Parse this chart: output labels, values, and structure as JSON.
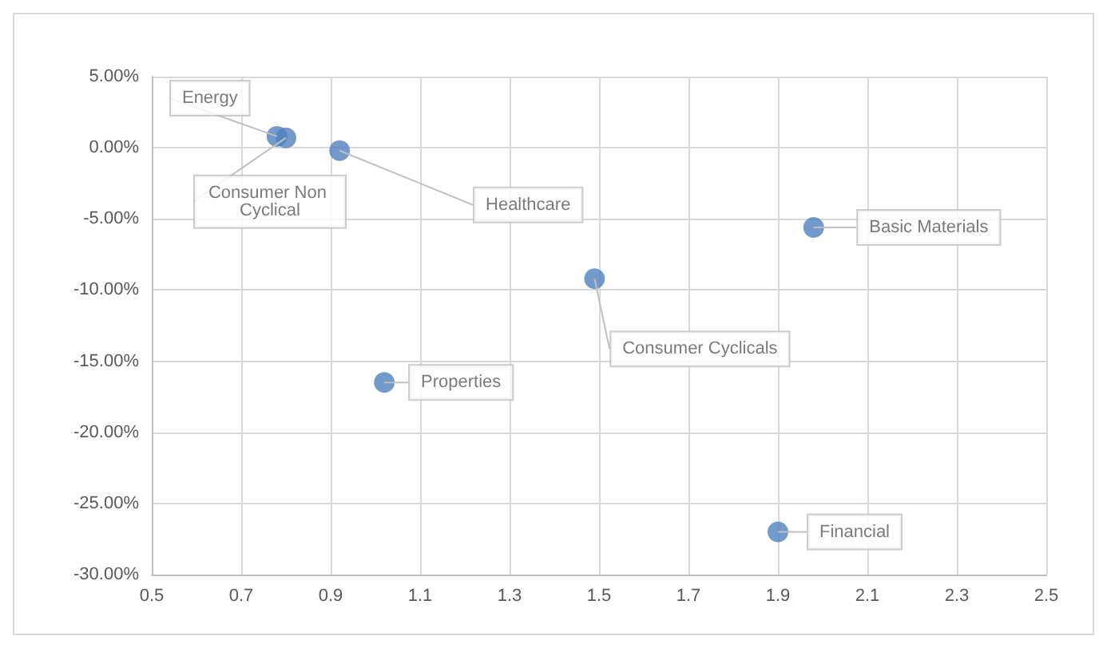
{
  "chart_data": {
    "type": "scatter",
    "marker": "circle",
    "grid": true,
    "series": [
      {
        "color": "#4f81bd",
        "x": [
          0.78,
          0.8,
          0.92,
          1.98,
          1.49,
          1.02,
          1.9
        ],
        "values": [
          0.8,
          0.7,
          -0.2,
          -5.6,
          -9.2,
          -16.5,
          -27.0
        ]
      }
    ],
    "annotations": [
      {
        "text": "Energy",
        "x": 0.78,
        "y": 0.8
      },
      {
        "text": "Consumer Non Cyclical",
        "x": 0.8,
        "y": 0.7
      },
      {
        "text": "Healthcare",
        "x": 0.92,
        "y": -0.2
      },
      {
        "text": "Basic Materials",
        "x": 1.98,
        "y": -5.6
      },
      {
        "text": "Consumer Cyclicals",
        "x": 1.49,
        "y": -9.2
      },
      {
        "text": "Properties",
        "x": 1.02,
        "y": -16.5
      },
      {
        "text": "Financial",
        "x": 1.9,
        "y": -27.0
      }
    ],
    "xlim": [
      0.5,
      2.5
    ],
    "xticks": [
      0.5,
      0.7,
      0.9,
      1.1,
      1.3,
      1.5,
      1.7,
      1.9,
      2.1,
      2.3,
      2.5
    ],
    "ylim": [
      -30,
      5
    ],
    "yticks": [
      {
        "value": 5,
        "label": "5.00%"
      },
      {
        "value": 0,
        "label": "0.00%"
      },
      {
        "value": -5,
        "label": "-5.00%"
      },
      {
        "value": -10,
        "label": "-10.00%"
      },
      {
        "value": -15,
        "label": "-15.00%"
      },
      {
        "value": -20,
        "label": "-20.00%"
      },
      {
        "value": -25,
        "label": "-25.00%"
      },
      {
        "value": -30,
        "label": "-30.00%"
      }
    ]
  }
}
